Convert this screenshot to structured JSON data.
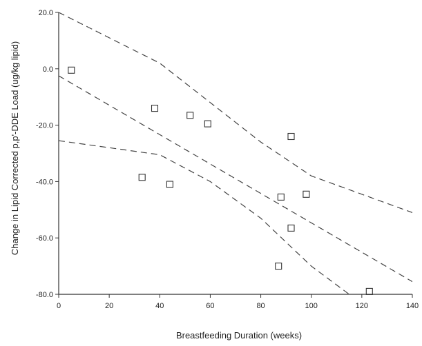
{
  "chart_data": {
    "type": "scatter",
    "xlabel": "Breastfeeding Duration (weeks)",
    "ylabel": "Change in Lipid Corrected p,p'-DDE Load (ug/kg lipid)",
    "xlim": [
      0,
      140
    ],
    "ylim": [
      -80,
      20
    ],
    "x_ticks": [
      "0",
      "20",
      "40",
      "60",
      "80",
      "100",
      "120",
      "140"
    ],
    "y_ticks": [
      "20.0",
      "0.0",
      "-20.0",
      "-40.0",
      "-60.0",
      "-80.0"
    ],
    "x_tick_values": [
      0,
      20,
      40,
      60,
      80,
      100,
      120,
      140
    ],
    "y_tick_values": [
      20,
      0,
      -20,
      -40,
      -60,
      -80
    ],
    "grid": false,
    "marker": "open-square",
    "points": [
      {
        "x": 5,
        "y": -0.5
      },
      {
        "x": 33,
        "y": -38.5
      },
      {
        "x": 38,
        "y": -14
      },
      {
        "x": 44,
        "y": -41
      },
      {
        "x": 52,
        "y": -16.5
      },
      {
        "x": 59,
        "y": -19.5
      },
      {
        "x": 87,
        "y": -70
      },
      {
        "x": 88,
        "y": -45.5
      },
      {
        "x": 92,
        "y": -24
      },
      {
        "x": 92,
        "y": -56.5
      },
      {
        "x": 98,
        "y": -44.5
      },
      {
        "x": 123,
        "y": -79
      }
    ],
    "regression_line": {
      "style": "dashed",
      "points": [
        [
          0,
          -2.5
        ],
        [
          140,
          -75.5
        ]
      ]
    },
    "upper_band": {
      "style": "dashed",
      "points": [
        [
          0,
          20
        ],
        [
          40,
          2
        ],
        [
          80,
          -26
        ],
        [
          100,
          -38
        ],
        [
          140,
          -51
        ]
      ]
    },
    "lower_band": {
      "style": "dashed",
      "points": [
        [
          0,
          -25.5
        ],
        [
          40,
          -30.5
        ],
        [
          60,
          -40
        ],
        [
          80,
          -53
        ],
        [
          100,
          -70
        ],
        [
          115,
          -80
        ]
      ]
    }
  }
}
